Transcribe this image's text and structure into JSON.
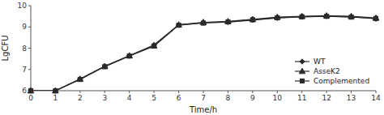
{
  "chart_data": {
    "type": "line",
    "xlabel": "Time/h",
    "ylabel": "LgCFU",
    "x": [
      0,
      1,
      2,
      3,
      4,
      5,
      6,
      7,
      8,
      9,
      10,
      11,
      12,
      13,
      14
    ],
    "series": [
      {
        "name": "WT",
        "color": "#2a2a2a",
        "marker": "diamond",
        "values": [
          6.0,
          6.0,
          6.55,
          7.15,
          7.65,
          8.15,
          9.1,
          9.2,
          9.22,
          9.32,
          9.42,
          9.47,
          9.5,
          9.48,
          9.38
        ]
      },
      {
        "name": "AsseK2",
        "color": "#2a2a2a",
        "marker": "triangle",
        "values": [
          6.0,
          6.0,
          6.55,
          7.15,
          7.65,
          8.12,
          9.1,
          9.22,
          9.26,
          9.36,
          9.46,
          9.5,
          9.53,
          9.5,
          9.42
        ]
      },
      {
        "name": "Complemented",
        "color": "#2a2a2a",
        "marker": "square",
        "values": [
          6.0,
          6.0,
          6.53,
          7.13,
          7.63,
          8.1,
          9.08,
          9.18,
          9.24,
          9.34,
          9.43,
          9.48,
          9.5,
          9.46,
          9.4
        ]
      }
    ],
    "xlim": [
      0,
      14
    ],
    "ylim": [
      6,
      10
    ],
    "xticks": [
      0,
      1,
      2,
      3,
      4,
      5,
      6,
      7,
      8,
      9,
      10,
      11,
      12,
      13,
      14
    ],
    "yticks": [
      6,
      7,
      8,
      9,
      10
    ],
    "grid": false,
    "legend": "lower right"
  }
}
